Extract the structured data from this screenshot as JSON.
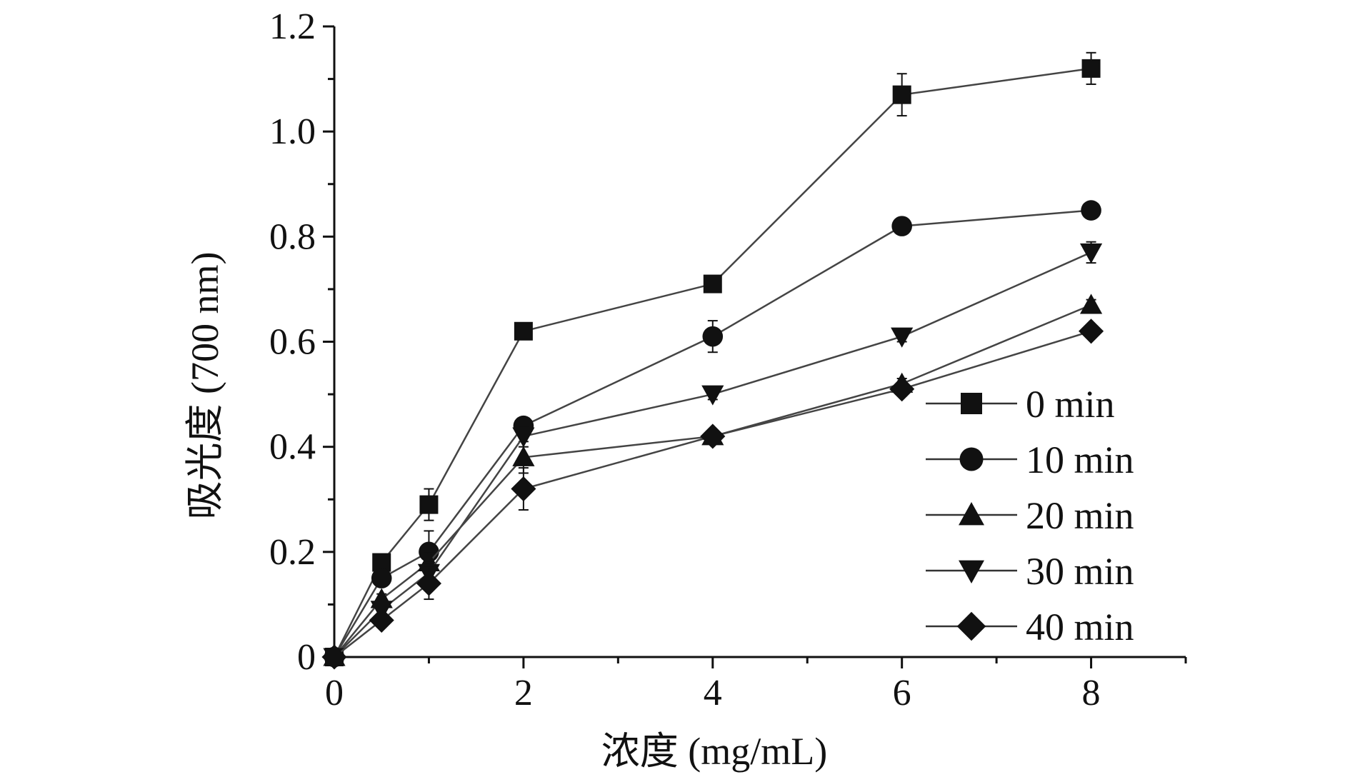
{
  "chart_data": {
    "type": "line",
    "title": "",
    "xlabel": "浓度 (mg/mL)",
    "ylabel": "吸光度 (700 nm)",
    "xlim": [
      0,
      9
    ],
    "ylim": [
      0,
      1.2
    ],
    "xticks": [
      0,
      2,
      4,
      6,
      8
    ],
    "xtick_labels": [
      "0",
      "2",
      "4",
      "6",
      "8"
    ],
    "yticks": [
      0,
      0.2,
      0.4,
      0.6,
      0.8,
      1.0,
      1.2
    ],
    "ytick_labels": [
      "0",
      "0.2",
      "0.4",
      "0.6",
      "0.8",
      "1.0",
      "1.2"
    ],
    "legend_position": "bottom-right",
    "x": [
      0,
      0.5,
      1,
      2,
      4,
      6,
      8
    ],
    "series": [
      {
        "name": "0 min",
        "marker": "square",
        "values": [
          0,
          0.18,
          0.29,
          0.62,
          0.71,
          1.07,
          1.12
        ],
        "errors": [
          0,
          0.01,
          0.03,
          0.01,
          0.01,
          0.04,
          0.03
        ]
      },
      {
        "name": "10 min",
        "marker": "circle",
        "values": [
          0,
          0.15,
          0.2,
          0.44,
          0.61,
          0.82,
          0.85
        ],
        "errors": [
          0,
          0.01,
          0.04,
          0.01,
          0.03,
          0.01,
          0.01
        ]
      },
      {
        "name": "20 min",
        "marker": "triangle-up",
        "values": [
          0,
          0.11,
          0.18,
          0.38,
          0.42,
          0.52,
          0.67
        ],
        "errors": [
          0,
          0.01,
          0.02,
          0.03,
          0.01,
          0.01,
          0.01
        ]
      },
      {
        "name": "30 min",
        "marker": "triangle-down",
        "values": [
          0,
          0.09,
          0.16,
          0.42,
          0.5,
          0.61,
          0.77
        ],
        "errors": [
          0,
          0.01,
          0.02,
          0.02,
          0.01,
          0.01,
          0.02
        ]
      },
      {
        "name": "40 min",
        "marker": "diamond",
        "values": [
          0,
          0.07,
          0.14,
          0.32,
          0.42,
          0.51,
          0.62
        ],
        "errors": [
          0,
          0.01,
          0.03,
          0.04,
          0.01,
          0.01,
          0.01
        ]
      }
    ]
  }
}
